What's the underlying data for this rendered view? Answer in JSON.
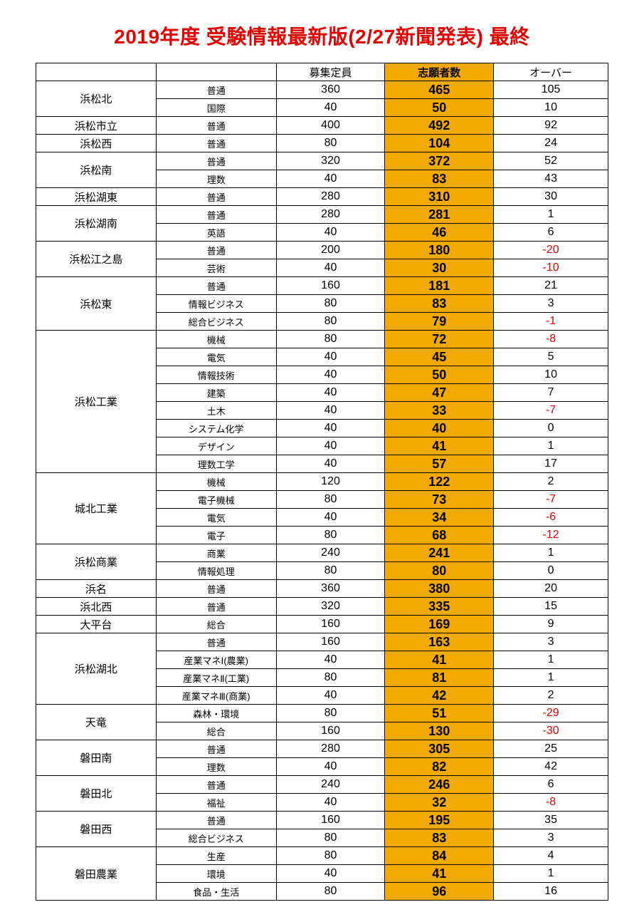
{
  "title": "2019年度 受験情報最新版(2/27新聞発表) 最終",
  "headers": {
    "school": "",
    "dept": "",
    "capacity": "募集定員",
    "applicants": "志願者数",
    "over": "オーバー"
  },
  "colors": {
    "title": "#e60000",
    "highlight_bg": "#f2a900",
    "negative": "#e60000",
    "border": "#000000",
    "bg": "#ffffff"
  },
  "schools": [
    {
      "name": "浜松北",
      "rows": [
        {
          "dept": "普通",
          "cap": 360,
          "app": 465,
          "over": 105
        },
        {
          "dept": "国際",
          "cap": 40,
          "app": 50,
          "over": 10
        }
      ]
    },
    {
      "name": "浜松市立",
      "rows": [
        {
          "dept": "普通",
          "cap": 400,
          "app": 492,
          "over": 92
        }
      ]
    },
    {
      "name": "浜松西",
      "rows": [
        {
          "dept": "普通",
          "cap": 80,
          "app": 104,
          "over": 24
        }
      ]
    },
    {
      "name": "浜松南",
      "rows": [
        {
          "dept": "普通",
          "cap": 320,
          "app": 372,
          "over": 52
        },
        {
          "dept": "理数",
          "cap": 40,
          "app": 83,
          "over": 43
        }
      ]
    },
    {
      "name": "浜松湖東",
      "rows": [
        {
          "dept": "普通",
          "cap": 280,
          "app": 310,
          "over": 30
        }
      ]
    },
    {
      "name": "浜松湖南",
      "rows": [
        {
          "dept": "普通",
          "cap": 280,
          "app": 281,
          "over": 1
        },
        {
          "dept": "英語",
          "cap": 40,
          "app": 46,
          "over": 6
        }
      ]
    },
    {
      "name": "浜松江之島",
      "rows": [
        {
          "dept": "普通",
          "cap": 200,
          "app": 180,
          "over": -20
        },
        {
          "dept": "芸術",
          "cap": 40,
          "app": 30,
          "over": -10
        }
      ]
    },
    {
      "name": "浜松東",
      "rows": [
        {
          "dept": "普通",
          "cap": 160,
          "app": 181,
          "over": 21
        },
        {
          "dept": "情報ビジネス",
          "cap": 80,
          "app": 83,
          "over": 3
        },
        {
          "dept": "総合ビジネス",
          "cap": 80,
          "app": 79,
          "over": -1
        }
      ]
    },
    {
      "name": "浜松工業",
      "rows": [
        {
          "dept": "機械",
          "cap": 80,
          "app": 72,
          "over": -8
        },
        {
          "dept": "電気",
          "cap": 40,
          "app": 45,
          "over": 5
        },
        {
          "dept": "情報技術",
          "cap": 40,
          "app": 50,
          "over": 10
        },
        {
          "dept": "建築",
          "cap": 40,
          "app": 47,
          "over": 7
        },
        {
          "dept": "土木",
          "cap": 40,
          "app": 33,
          "over": -7
        },
        {
          "dept": "システム化学",
          "cap": 40,
          "app": 40,
          "over": 0
        },
        {
          "dept": "デザイン",
          "cap": 40,
          "app": 41,
          "over": 1
        },
        {
          "dept": "理数工学",
          "cap": 40,
          "app": 57,
          "over": 17
        }
      ]
    },
    {
      "name": "城北工業",
      "rows": [
        {
          "dept": "機械",
          "cap": 120,
          "app": 122,
          "over": 2
        },
        {
          "dept": "電子機械",
          "cap": 80,
          "app": 73,
          "over": -7
        },
        {
          "dept": "電気",
          "cap": 40,
          "app": 34,
          "over": -6
        },
        {
          "dept": "電子",
          "cap": 80,
          "app": 68,
          "over": -12
        }
      ]
    },
    {
      "name": "浜松商業",
      "rows": [
        {
          "dept": "商業",
          "cap": 240,
          "app": 241,
          "over": 1
        },
        {
          "dept": "情報処理",
          "cap": 80,
          "app": 80,
          "over": 0
        }
      ]
    },
    {
      "name": "浜名",
      "rows": [
        {
          "dept": "普通",
          "cap": 360,
          "app": 380,
          "over": 20
        }
      ]
    },
    {
      "name": "浜北西",
      "rows": [
        {
          "dept": "普通",
          "cap": 320,
          "app": 335,
          "over": 15
        }
      ]
    },
    {
      "name": "大平台",
      "rows": [
        {
          "dept": "総合",
          "cap": 160,
          "app": 169,
          "over": 9
        }
      ]
    },
    {
      "name": "浜松湖北",
      "rows": [
        {
          "dept": "普通",
          "cap": 160,
          "app": 163,
          "over": 3
        },
        {
          "dept": "産業マネⅠ(農業)",
          "cap": 40,
          "app": 41,
          "over": 1
        },
        {
          "dept": "産業マネⅡ(工業)",
          "cap": 80,
          "app": 81,
          "over": 1
        },
        {
          "dept": "産業マネⅢ(商業)",
          "cap": 40,
          "app": 42,
          "over": 2
        }
      ]
    },
    {
      "name": "天竜",
      "rows": [
        {
          "dept": "森林・環境",
          "cap": 80,
          "app": 51,
          "over": -29
        },
        {
          "dept": "総合",
          "cap": 160,
          "app": 130,
          "over": -30
        }
      ]
    },
    {
      "name": "磐田南",
      "rows": [
        {
          "dept": "普通",
          "cap": 280,
          "app": 305,
          "over": 25
        },
        {
          "dept": "理数",
          "cap": 40,
          "app": 82,
          "over": 42
        }
      ]
    },
    {
      "name": "磐田北",
      "rows": [
        {
          "dept": "普通",
          "cap": 240,
          "app": 246,
          "over": 6
        },
        {
          "dept": "福祉",
          "cap": 40,
          "app": 32,
          "over": -8
        }
      ]
    },
    {
      "name": "磐田西",
      "rows": [
        {
          "dept": "普通",
          "cap": 160,
          "app": 195,
          "over": 35
        },
        {
          "dept": "総合ビジネス",
          "cap": 80,
          "app": 83,
          "over": 3
        }
      ]
    },
    {
      "name": "磐田農業",
      "rows": [
        {
          "dept": "生産",
          "cap": 80,
          "app": 84,
          "over": 4
        },
        {
          "dept": "環境",
          "cap": 40,
          "app": 41,
          "over": 1
        },
        {
          "dept": "食品・生活",
          "cap": 80,
          "app": 96,
          "over": 16
        }
      ]
    }
  ]
}
